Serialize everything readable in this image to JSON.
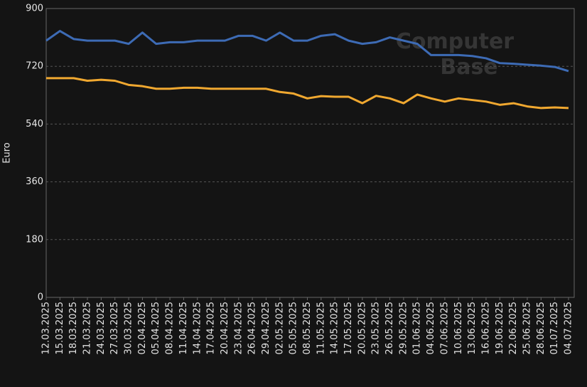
{
  "chart_data": {
    "type": "line",
    "y_label": "Euro",
    "watermark": [
      "Computer",
      "Base"
    ],
    "categories": [
      "12.03.2025",
      "15.03.2025",
      "18.03.2025",
      "21.03.2025",
      "24.03.2025",
      "27.03.2025",
      "30.03.2025",
      "02.04.2025",
      "05.04.2025",
      "08.04.2025",
      "11.04.2025",
      "14.04.2025",
      "17.04.2025",
      "20.04.2025",
      "23.04.2025",
      "26.04.2025",
      "29.04.2025",
      "02.05.2025",
      "05.05.2025",
      "08.05.2025",
      "11.05.2025",
      "14.05.2025",
      "17.05.2025",
      "20.05.2025",
      "23.05.2025",
      "26.05.2025",
      "29.05.2025",
      "01.06.2025",
      "04.06.2025",
      "07.06.2025",
      "10.06.2025",
      "13.06.2025",
      "16.06.2025",
      "19.06.2025",
      "22.06.2025",
      "25.06.2025",
      "28.06.2025",
      "01.07.2025",
      "04.07.2025"
    ],
    "series": [
      {
        "color": "#3d6bb5",
        "values": [
          800,
          830,
          805,
          800,
          800,
          800,
          790,
          825,
          790,
          795,
          795,
          800,
          800,
          800,
          815,
          815,
          800,
          825,
          800,
          800,
          815,
          820,
          800,
          790,
          795,
          810,
          800,
          790,
          755,
          755,
          755,
          752,
          745,
          730,
          728,
          725,
          722,
          718,
          705
        ]
      },
      {
        "color": "#f0a830",
        "values": [
          683,
          683,
          683,
          675,
          678,
          675,
          662,
          658,
          650,
          650,
          653,
          653,
          650,
          650,
          650,
          650,
          650,
          640,
          635,
          620,
          627,
          625,
          625,
          605,
          628,
          620,
          605,
          632,
          620,
          610,
          620,
          615,
          610,
          600,
          605,
          595,
          590,
          592,
          590
        ]
      }
    ],
    "ylim": [
      0,
      900
    ],
    "yticks": [
      0,
      180,
      360,
      540,
      720,
      900
    ],
    "grid": true
  }
}
